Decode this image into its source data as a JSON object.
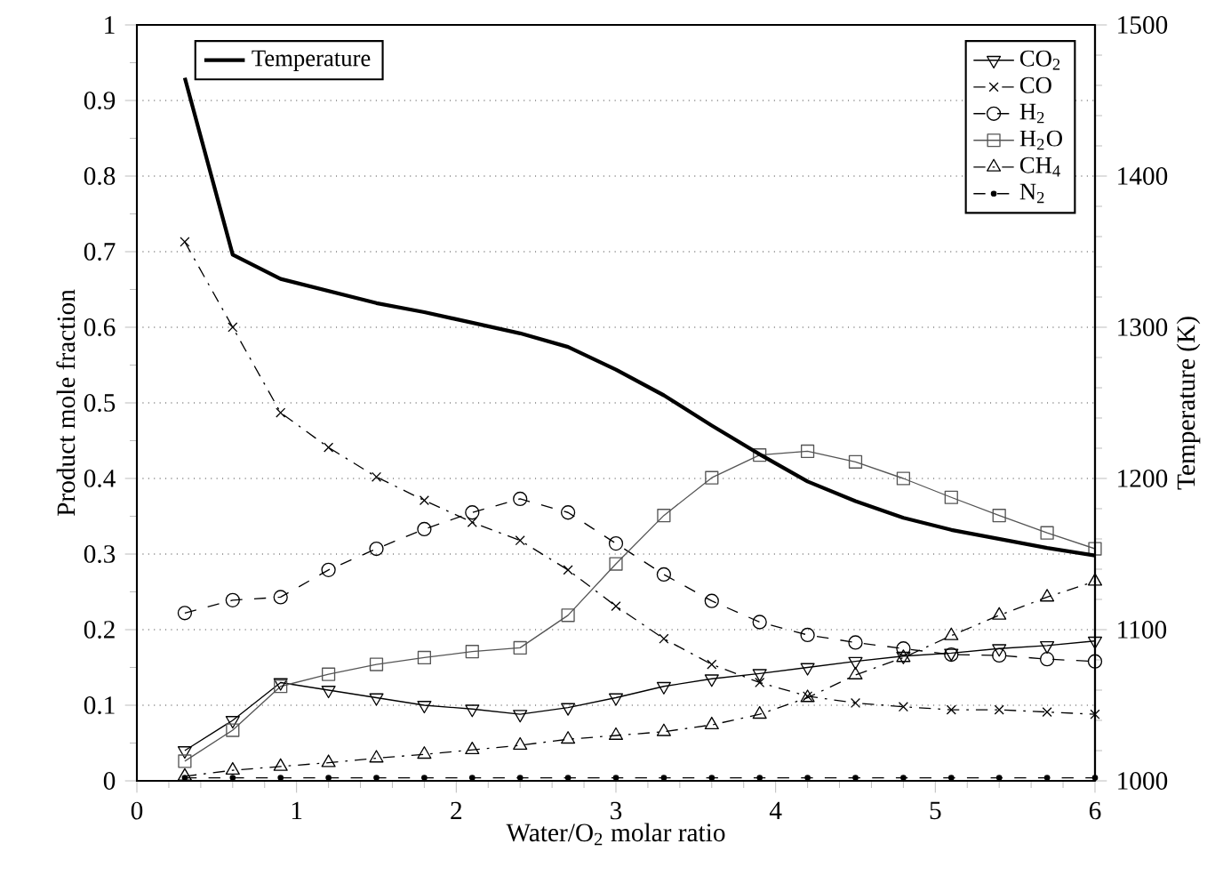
{
  "chart_data": {
    "type": "line",
    "xlabel": "Water/O$_{2}$ molar ratio",
    "ylabel": "Product mole fraction",
    "y2label": "Temperature (K)",
    "x": [
      0.3,
      0.6,
      0.9,
      1.2,
      1.5,
      1.8,
      2.1,
      2.4,
      2.7,
      3.0,
      3.3,
      3.6,
      3.9,
      4.2,
      4.5,
      4.8,
      5.1,
      5.4,
      5.7,
      6.0
    ],
    "xlim": [
      0,
      6
    ],
    "xticks": [
      0,
      1,
      2,
      3,
      4,
      5,
      6
    ],
    "ylim": [
      0,
      1
    ],
    "yticks": [
      0,
      0.1,
      0.2,
      0.3,
      0.4,
      0.5,
      0.6,
      0.7,
      0.8,
      0.9,
      1
    ],
    "y2lim": [
      1000,
      1500
    ],
    "y2ticks": [
      1000,
      1100,
      1200,
      1300,
      1400,
      1500
    ],
    "grid": "y",
    "legend": "top right",
    "series": [
      {
        "name": "CO$_{2}$",
        "color": "#000000",
        "marker": "triangle-down",
        "line_style": "solid",
        "values": [
          0.04,
          0.08,
          0.13,
          0.12,
          0.11,
          0.1,
          0.095,
          0.088,
          0.097,
          0.11,
          0.125,
          0.135,
          0.142,
          0.15,
          0.158,
          0.165,
          0.169,
          0.175,
          0.179,
          0.185
        ]
      },
      {
        "name": "CO",
        "color": "#000000",
        "marker": "cross",
        "line_style": "dashdot",
        "values": [
          0.713,
          0.6,
          0.487,
          0.441,
          0.402,
          0.371,
          0.342,
          0.318,
          0.279,
          0.231,
          0.188,
          0.154,
          0.13,
          0.112,
          0.103,
          0.098,
          0.094,
          0.094,
          0.091,
          0.088
        ]
      },
      {
        "name": "H$_{2}$",
        "color": "#000000",
        "marker": "circle",
        "line_style": "dashed",
        "values": [
          0.222,
          0.239,
          0.243,
          0.279,
          0.307,
          0.333,
          0.355,
          0.373,
          0.355,
          0.314,
          0.273,
          0.238,
          0.21,
          0.193,
          0.183,
          0.175,
          0.167,
          0.166,
          0.161,
          0.158
        ]
      },
      {
        "name": "H$_{2}$O",
        "color": "#555555",
        "marker": "square",
        "line_style": "solid",
        "values": [
          0.026,
          0.067,
          0.125,
          0.141,
          0.154,
          0.163,
          0.171,
          0.176,
          0.219,
          0.287,
          0.351,
          0.401,
          0.431,
          0.436,
          0.422,
          0.4,
          0.375,
          0.351,
          0.328,
          0.307
        ]
      },
      {
        "name": "CH$_{4}$",
        "color": "#000000",
        "marker": "triangle",
        "line_style": "dashdot",
        "values": [
          0.006,
          0.014,
          0.019,
          0.024,
          0.03,
          0.035,
          0.041,
          0.047,
          0.055,
          0.06,
          0.065,
          0.074,
          0.088,
          0.11,
          0.14,
          0.163,
          0.192,
          0.219,
          0.243,
          0.264
        ]
      },
      {
        "name": "N$_{2}$",
        "color": "#000000",
        "marker": "dot",
        "line_style": "dashed",
        "values": [
          0.004,
          0.004,
          0.004,
          0.004,
          0.004,
          0.004,
          0.004,
          0.004,
          0.004,
          0.004,
          0.004,
          0.004,
          0.004,
          0.004,
          0.004,
          0.004,
          0.004,
          0.004,
          0.004,
          0.004
        ]
      },
      {
        "name": "Temperature",
        "color": "#000000",
        "axis": "y2",
        "line_style": "solid",
        "marker": "none",
        "values": [
          1465,
          1348,
          1332,
          1324,
          1316,
          1310,
          1303,
          1296,
          1287,
          1272,
          1255,
          1235,
          1216,
          1198,
          1185,
          1174,
          1166,
          1160,
          1154,
          1149
        ]
      }
    ]
  }
}
